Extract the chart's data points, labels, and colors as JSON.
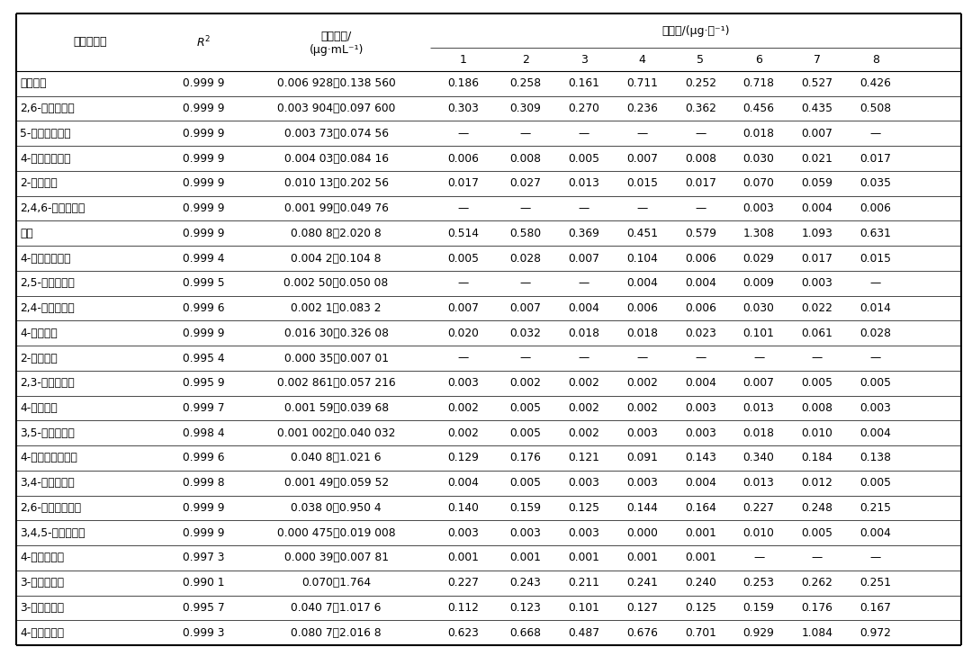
{
  "rows": [
    [
      "愈创木酚",
      "0.999 9",
      "0.006 928～0.138 560",
      "0.186",
      "0.258",
      "0.161",
      "0.711",
      "0.252",
      "0.718",
      "0.527",
      "0.426"
    ],
    [
      "2,6-二甲基苯酚",
      "0.999 9",
      "0.003 904～0.097 600",
      "0.303",
      "0.309",
      "0.270",
      "0.236",
      "0.362",
      "0.456",
      "0.435",
      "0.508"
    ],
    [
      "5-甲基愈创木酚",
      "0.999 9",
      "0.003 73～0.074 56",
      "—",
      "—",
      "—",
      "—",
      "—",
      "0.018",
      "0.007",
      "—"
    ],
    [
      "4-甲基愈创木酚",
      "0.999 9",
      "0.004 03～0.084 16",
      "0.006",
      "0.008",
      "0.005",
      "0.007",
      "0.008",
      "0.030",
      "0.021",
      "0.017"
    ],
    [
      "2-甲基苯酚",
      "0.999 9",
      "0.010 13～0.202 56",
      "0.017",
      "0.027",
      "0.013",
      "0.015",
      "0.017",
      "0.070",
      "0.059",
      "0.035"
    ],
    [
      "2,4,6-三甲基苯酚",
      "0.999 9",
      "0.001 99～0.049 76",
      "—",
      "—",
      "—",
      "—",
      "—",
      "0.003",
      "0.004",
      "0.006"
    ],
    [
      "苯酚",
      "0.999 9",
      "0.080 8～2.020 8",
      "0.514",
      "0.580",
      "0.369",
      "0.451",
      "0.579",
      "1.308",
      "1.093",
      "0.631"
    ],
    [
      "4-乙基愈创木酚",
      "0.999 4",
      "0.004 2～0.104 8",
      "0.005",
      "0.028",
      "0.007",
      "0.104",
      "0.006",
      "0.029",
      "0.017",
      "0.015"
    ],
    [
      "2,5-二甲基苯酚",
      "0.999 5",
      "0.002 50～0.050 08",
      "—",
      "—",
      "—",
      "0.004",
      "0.004",
      "0.009",
      "0.003",
      "—"
    ],
    [
      "2,4-二甲基苯酚",
      "0.999 6",
      "0.002 1～0.083 2",
      "0.007",
      "0.007",
      "0.004",
      "0.006",
      "0.006",
      "0.030",
      "0.022",
      "0.014"
    ],
    [
      "4-甲基苯酚",
      "0.999 9",
      "0.016 30～0.326 08",
      "0.020",
      "0.032",
      "0.018",
      "0.018",
      "0.023",
      "0.101",
      "0.061",
      "0.028"
    ],
    [
      "2-丙基苯酚",
      "0.995 4",
      "0.000 35～0.007 01",
      "—",
      "—",
      "—",
      "—",
      "—",
      "—",
      "—",
      "—"
    ],
    [
      "2,3-二甲基苯酚",
      "0.995 9",
      "0.002 861～0.057 216",
      "0.003",
      "0.002",
      "0.002",
      "0.002",
      "0.004",
      "0.007",
      "0.005",
      "0.005"
    ],
    [
      "4-乙基苯酚",
      "0.999 7",
      "0.001 59～0.039 68",
      "0.002",
      "0.005",
      "0.002",
      "0.002",
      "0.003",
      "0.013",
      "0.008",
      "0.003"
    ],
    [
      "3,5-二甲基苯酚",
      "0.998 4",
      "0.001 002～0.040 032",
      "0.002",
      "0.005",
      "0.002",
      "0.003",
      "0.003",
      "0.018",
      "0.010",
      "0.004"
    ],
    [
      "4-乙烯基愈创木酚",
      "0.999 6",
      "0.040 8～1.021 6",
      "0.129",
      "0.176",
      "0.121",
      "0.091",
      "0.143",
      "0.340",
      "0.184",
      "0.138"
    ],
    [
      "3,4-二甲基苯酚",
      "0.999 8",
      "0.001 49～0.059 52",
      "0.004",
      "0.005",
      "0.003",
      "0.003",
      "0.004",
      "0.013",
      "0.012",
      "0.005"
    ],
    [
      "2,6-二甲氧基苯酚",
      "0.999 9",
      "0.038 0～0.950 4",
      "0.140",
      "0.159",
      "0.125",
      "0.144",
      "0.164",
      "0.227",
      "0.248",
      "0.215"
    ],
    [
      "3,4,5-三甲基苯酚",
      "0.999 9",
      "0.000 475～0.019 008",
      "0.003",
      "0.003",
      "0.003",
      "0.000",
      "0.001",
      "0.010",
      "0.005",
      "0.004"
    ],
    [
      "4-丙氧基苯酚",
      "0.997 3",
      "0.000 39～0.007 81",
      "0.001",
      "0.001",
      "0.001",
      "0.001",
      "0.001",
      "—",
      "—",
      "—"
    ],
    [
      "3-羟基苯甲醉",
      "0.990 1",
      "0.070～1.764",
      "0.227",
      "0.243",
      "0.211",
      "0.241",
      "0.240",
      "0.253",
      "0.262",
      "0.251"
    ],
    [
      "3-羟基苯乙酮",
      "0.995 7",
      "0.040 7～1.017 6",
      "0.112",
      "0.123",
      "0.101",
      "0.127",
      "0.125",
      "0.159",
      "0.176",
      "0.167"
    ],
    [
      "4-羟基苯乙醇",
      "0.999 3",
      "0.080 7～2.016 8",
      "0.623",
      "0.668",
      "0.487",
      "0.676",
      "0.701",
      "0.929",
      "1.084",
      "0.972"
    ]
  ],
  "col0_header": "烟熏香成分",
  "col1_header": "R²",
  "col2_header_line1": "线性范围/",
  "col2_header_line2": "(μg·mL⁻¹)",
  "release_header": "释放量/(μg·支⁻¹)",
  "sub_headers": [
    "1",
    "2",
    "3",
    "4",
    "5",
    "6",
    "7",
    "8"
  ],
  "background_color": "#ffffff"
}
